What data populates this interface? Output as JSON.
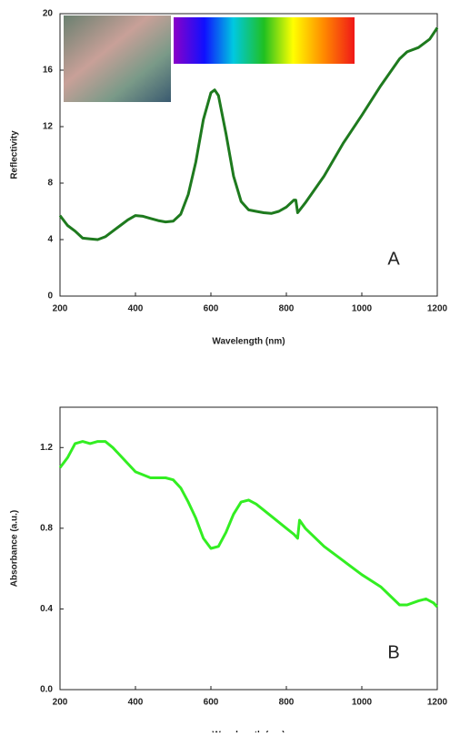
{
  "chart_data": [
    {
      "type": "line",
      "x_label": "Wavelength (nm)",
      "y_label": "Reflectivity",
      "annotation": "A",
      "color": "#1e7a1e",
      "x": [
        200,
        220,
        240,
        260,
        280,
        300,
        320,
        340,
        360,
        380,
        400,
        420,
        440,
        460,
        480,
        500,
        520,
        540,
        560,
        580,
        600,
        610,
        620,
        640,
        660,
        680,
        700,
        720,
        740,
        760,
        780,
        800,
        820,
        825,
        830,
        850,
        900,
        950,
        1000,
        1050,
        1100,
        1120,
        1150,
        1180,
        1200
      ],
      "values": [
        5.7,
        5.0,
        4.6,
        4.1,
        4.05,
        4.0,
        4.2,
        4.6,
        5.0,
        5.4,
        5.7,
        5.65,
        5.5,
        5.35,
        5.25,
        5.3,
        5.8,
        7.2,
        9.5,
        12.5,
        14.4,
        14.6,
        14.2,
        11.5,
        8.5,
        6.7,
        6.1,
        6.0,
        5.9,
        5.85,
        6.0,
        6.3,
        6.8,
        6.8,
        5.9,
        6.6,
        8.5,
        10.8,
        12.8,
        14.9,
        16.8,
        17.3,
        17.6,
        18.2,
        19.0
      ],
      "xlim": [
        200,
        1200
      ],
      "xticks": [
        200,
        400,
        600,
        800,
        1000,
        1200
      ],
      "ylim": [
        0,
        20
      ],
      "yticks": [
        0,
        4,
        8,
        12,
        16,
        20
      ]
    },
    {
      "type": "line",
      "x_label": "Wavelength (nm)",
      "y_label": "Absorbance (a.u.)",
      "annotation": "B",
      "color": "#33ee22",
      "x": [
        200,
        220,
        240,
        260,
        280,
        300,
        320,
        340,
        360,
        380,
        400,
        440,
        480,
        500,
        520,
        540,
        560,
        580,
        600,
        620,
        640,
        660,
        680,
        700,
        720,
        760,
        800,
        820,
        830,
        835,
        850,
        900,
        950,
        1000,
        1050,
        1100,
        1120,
        1150,
        1170,
        1190,
        1200
      ],
      "values": [
        1.1,
        1.15,
        1.22,
        1.23,
        1.22,
        1.23,
        1.23,
        1.2,
        1.16,
        1.12,
        1.08,
        1.05,
        1.05,
        1.04,
        1.0,
        0.93,
        0.85,
        0.75,
        0.7,
        0.71,
        0.78,
        0.87,
        0.93,
        0.94,
        0.92,
        0.86,
        0.8,
        0.77,
        0.75,
        0.84,
        0.8,
        0.71,
        0.64,
        0.57,
        0.51,
        0.42,
        0.42,
        0.44,
        0.45,
        0.43,
        0.41
      ],
      "xlim": [
        200,
        1200
      ],
      "xticks": [
        200,
        400,
        600,
        800,
        1000,
        1200
      ],
      "ylim": [
        0,
        1.4
      ],
      "yticks": [
        {
          "value": 0,
          "label": "0.0"
        },
        0.4,
        0.8,
        1.2
      ]
    }
  ]
}
